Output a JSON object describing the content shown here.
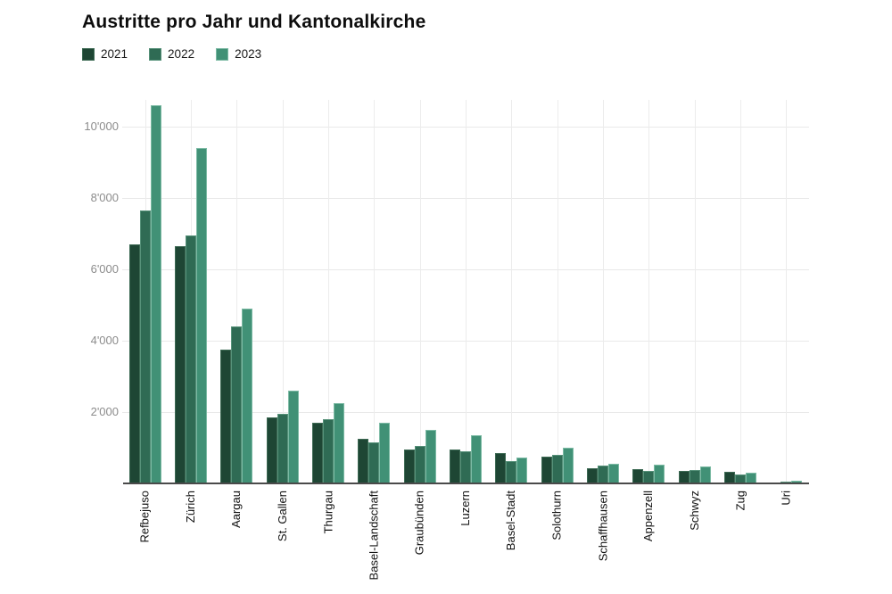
{
  "title": "Austritte pro Jahr und Kantonalkirche",
  "legend": {
    "items": [
      "2021",
      "2022",
      "2023"
    ]
  },
  "chart_data": {
    "type": "bar",
    "title": "Austritte pro Jahr und Kantonalkirche",
    "categories": [
      "Refbejuso",
      "Zürich",
      "Aargau",
      "St. Gallen",
      "Thurgau",
      "Basel-Landschaft",
      "Graubünden",
      "Luzern",
      "Basel-Stadt",
      "Solothurn",
      "Schaffhausen",
      "Appenzell",
      "Schwyz",
      "Zug",
      "Uri"
    ],
    "series": [
      {
        "name": "2021",
        "color": "#1e4634",
        "border_color": "#3d6a54",
        "values": [
          6700,
          6650,
          3750,
          1850,
          1700,
          1250,
          950,
          950,
          850,
          750,
          420,
          400,
          340,
          320,
          30
        ]
      },
      {
        "name": "2022",
        "color": "#2f6b54",
        "border_color": "#569179",
        "values": [
          7650,
          6950,
          4400,
          1950,
          1800,
          1150,
          1050,
          900,
          625,
          810,
          510,
          360,
          380,
          240,
          50
        ]
      },
      {
        "name": "2023",
        "color": "#419176",
        "border_color": "#7cbaa4",
        "values": [
          10600,
          9400,
          4900,
          2600,
          2250,
          1700,
          1500,
          1350,
          730,
          1000,
          560,
          520,
          470,
          300,
          80
        ]
      }
    ],
    "y_ticks": [
      {
        "label": "2'000",
        "value": 2000
      },
      {
        "label": "4'000",
        "value": 4000
      },
      {
        "label": "6'000",
        "value": 6000
      },
      {
        "label": "8'000",
        "value": 8000
      },
      {
        "label": "10'000",
        "value": 10000
      }
    ],
    "ylim": [
      0,
      10750
    ],
    "xlabel": "",
    "ylabel": "",
    "grid": true,
    "legend_position": "top-left"
  }
}
